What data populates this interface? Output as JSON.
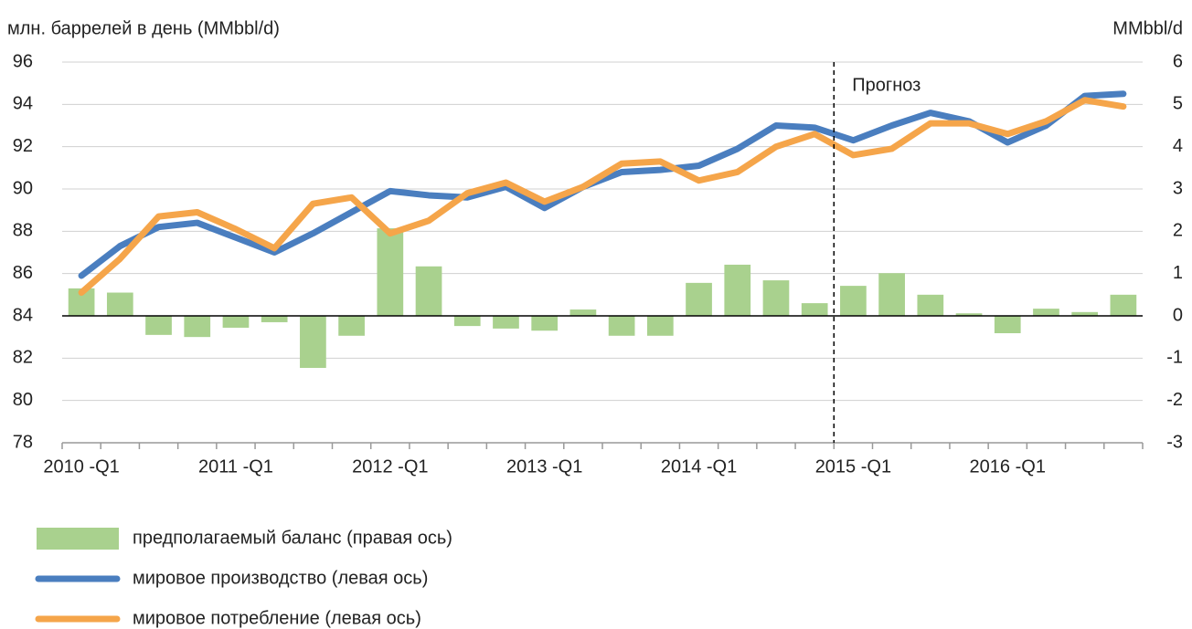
{
  "chart_data": {
    "type": "bar_line",
    "y_label": "млн. баррелей в день (MMbbl/d)",
    "y2_label": "MMbbl/d",
    "annotation": {
      "text": "Прогноз",
      "category": "2015 -Q1"
    },
    "categories": [
      "2010 -Q1",
      null,
      null,
      null,
      "2011 -Q1",
      null,
      null,
      null,
      "2012 -Q1",
      null,
      null,
      null,
      "2013 -Q1",
      null,
      null,
      null,
      "2014 -Q1",
      null,
      null,
      null,
      "2015 -Q1",
      null,
      null,
      null,
      "2016 -Q1",
      null,
      null,
      null
    ],
    "series": [
      {
        "name": "предполагаемый баланс (правая ось)",
        "type": "bar",
        "axis": "y2",
        "color": "#a9d18e",
        "values": [
          0.65,
          0.55,
          -0.45,
          -0.5,
          -0.28,
          -0.15,
          -1.23,
          -0.47,
          2.07,
          1.17,
          -0.24,
          -0.3,
          -0.35,
          0.15,
          -0.47,
          -0.47,
          0.78,
          1.21,
          0.84,
          0.3,
          0.71,
          1.01,
          0.5,
          0.06,
          -0.41,
          0.17,
          0.09,
          0.5
        ]
      },
      {
        "name": "мировое производство (левая ось)",
        "type": "line",
        "axis": "y",
        "color": "#4a7ebf",
        "values": [
          85.9,
          87.3,
          88.2,
          88.4,
          87.7,
          87.0,
          87.9,
          88.9,
          89.9,
          89.7,
          89.6,
          90.1,
          89.1,
          90.1,
          90.8,
          90.9,
          91.1,
          91.9,
          93.0,
          92.9,
          92.3,
          93.0,
          93.6,
          93.2,
          92.2,
          93.0,
          94.4,
          94.5
        ]
      },
      {
        "name": "мировое потребление (левая ось)",
        "type": "line",
        "axis": "y",
        "color": "#f5a54a",
        "values": [
          85.1,
          86.7,
          88.7,
          88.9,
          88.1,
          87.2,
          89.3,
          89.6,
          87.9,
          88.5,
          89.8,
          90.3,
          89.4,
          90.1,
          91.2,
          91.3,
          90.4,
          90.8,
          92.0,
          92.6,
          91.6,
          91.9,
          93.1,
          93.1,
          92.6,
          93.2,
          94.2,
          93.9
        ]
      }
    ],
    "ylim": [
      78,
      96
    ],
    "yticks": [
      78,
      80,
      82,
      84,
      86,
      88,
      90,
      92,
      94,
      96
    ],
    "y2lim": [
      -3,
      6
    ],
    "y2ticks": [
      -3,
      -2,
      -1,
      0,
      1,
      2,
      3,
      4,
      5,
      6
    ],
    "grid": true
  }
}
